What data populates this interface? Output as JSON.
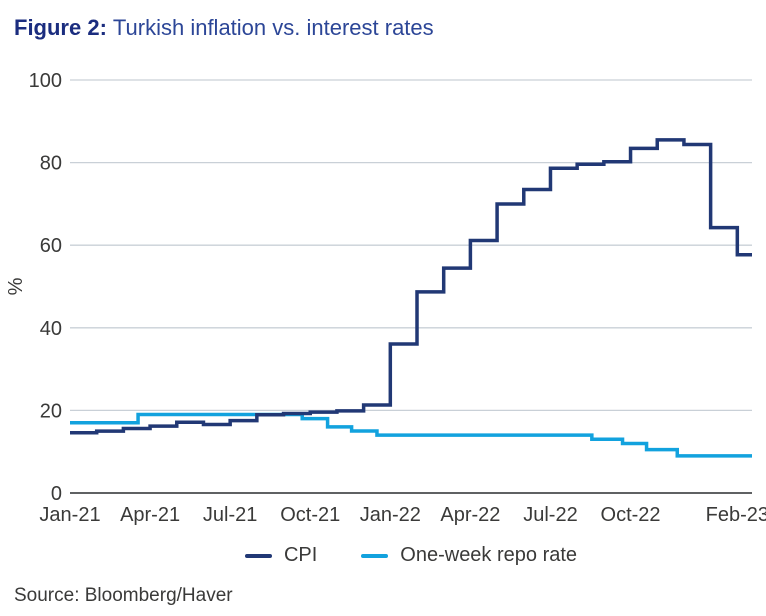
{
  "header": {
    "figure_label": "Figure 2:",
    "figure_title": "Turkish inflation vs. interest rates"
  },
  "source": "Source: Bloomberg/Haver",
  "chart_data": {
    "type": "line",
    "title": "Figure 2: Turkish inflation vs. interest rates",
    "xlabel": "",
    "ylabel": "%",
    "ylim": [
      0,
      100
    ],
    "yticks": [
      0,
      20,
      40,
      60,
      80,
      100
    ],
    "grid": "horizontal",
    "legend_position": "bottom",
    "x_unit": "months since Jan-2021",
    "x_end_month": 25.55,
    "xticks": [
      {
        "label": "Jan-21",
        "month": 0
      },
      {
        "label": "Apr-21",
        "month": 3
      },
      {
        "label": "Jul-21",
        "month": 6
      },
      {
        "label": "Oct-21",
        "month": 9
      },
      {
        "label": "Jan-22",
        "month": 12
      },
      {
        "label": "Apr-22",
        "month": 15
      },
      {
        "label": "Jul-22",
        "month": 18
      },
      {
        "label": "Oct-22",
        "month": 21
      },
      {
        "label": "Feb-23",
        "month": 25
      }
    ],
    "colors": {
      "grid_line": "#c9d0d7",
      "zero_line": "#5f6163",
      "axis_text": "#3a3a39"
    },
    "series": [
      {
        "name": "CPI",
        "color": "#213875",
        "line_style": "step",
        "points": [
          [
            0,
            14.6
          ],
          [
            1,
            14.97
          ],
          [
            2,
            15.61
          ],
          [
            3,
            16.19
          ],
          [
            4,
            17.14
          ],
          [
            5,
            16.59
          ],
          [
            6,
            17.53
          ],
          [
            7,
            18.95
          ],
          [
            8,
            19.25
          ],
          [
            9,
            19.58
          ],
          [
            10,
            19.89
          ],
          [
            11,
            21.31
          ],
          [
            12,
            36.08
          ],
          [
            13,
            48.69
          ],
          [
            14,
            54.44
          ],
          [
            15,
            61.14
          ],
          [
            16,
            69.97
          ],
          [
            17,
            73.5
          ],
          [
            18,
            78.62
          ],
          [
            19,
            79.6
          ],
          [
            20,
            80.21
          ],
          [
            21,
            83.45
          ],
          [
            22,
            85.51
          ],
          [
            23,
            84.39
          ],
          [
            24,
            64.27
          ],
          [
            25,
            57.68
          ]
        ]
      },
      {
        "name": "One-week repo rate",
        "color": "#12a2de",
        "line_style": "step",
        "points": [
          [
            0,
            17
          ],
          [
            2.55,
            19
          ],
          [
            8.7,
            18
          ],
          [
            9.65,
            16
          ],
          [
            10.55,
            15
          ],
          [
            11.5,
            14
          ],
          [
            19.55,
            13
          ],
          [
            20.7,
            12
          ],
          [
            21.6,
            10.5
          ],
          [
            22.75,
            9
          ]
        ]
      }
    ]
  }
}
